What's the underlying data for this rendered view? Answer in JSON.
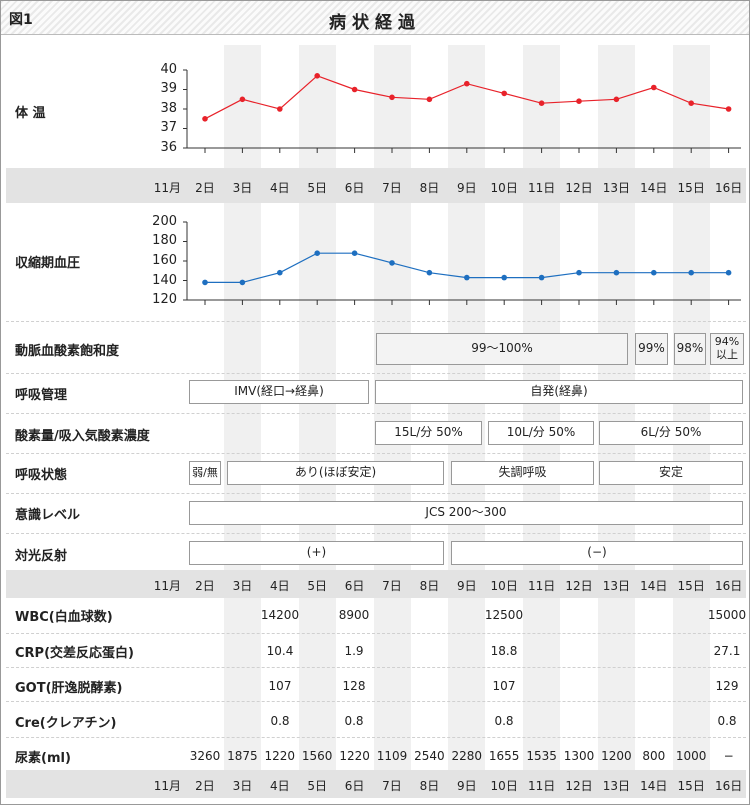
{
  "header": {
    "figure_number": "図1",
    "title": "病状経過"
  },
  "month_label": "11月",
  "days": [
    "2日",
    "3日",
    "4日",
    "5日",
    "6日",
    "7日",
    "8日",
    "9日",
    "10日",
    "11日",
    "12日",
    "13日",
    "14日",
    "15日",
    "16日"
  ],
  "row_labels": {
    "temperature": "体 温",
    "blood_pressure": "収縮期血圧",
    "spo2": "動脈血酸素飽和度",
    "respiratory_management": "呼吸管理",
    "oxygen": "酸素量/吸入気酸素濃度",
    "respiratory_state": "呼吸状態",
    "consciousness": "意識レベル",
    "light_reflex": "対光反射",
    "wbc": "WBC(白血球数)",
    "crp": "CRP(交差反応蛋白)",
    "got": "GOT(肝逸脱酵素)",
    "cre": "Cre(クレアチン)",
    "urine": "尿素(ml)"
  },
  "chart_data": [
    {
      "type": "line",
      "x": [
        "2日",
        "3日",
        "4日",
        "5日",
        "6日",
        "7日",
        "8日",
        "9日",
        "10日",
        "11日",
        "12日",
        "13日",
        "14日",
        "15日",
        "16日"
      ],
      "series": [
        {
          "values": [
            37.5,
            38.5,
            38.0,
            39.7,
            39.0,
            38.6,
            38.5,
            39.3,
            38.8,
            38.3,
            38.4,
            38.5,
            39.1,
            38.3,
            38.0
          ]
        }
      ],
      "ylim": [
        36,
        40
      ],
      "yticks": [
        "40",
        "39",
        "38",
        "37",
        "36"
      ],
      "color": "#e8222a"
    },
    {
      "type": "line",
      "x": [
        "2日",
        "3日",
        "4日",
        "5日",
        "6日",
        "7日",
        "8日",
        "9日",
        "10日",
        "11日",
        "12日",
        "13日",
        "14日",
        "15日",
        "16日"
      ],
      "series": [
        {
          "values": [
            138,
            138,
            148,
            168,
            168,
            158,
            148,
            143,
            143,
            143,
            148,
            148,
            148,
            148,
            148
          ]
        }
      ],
      "ylim": [
        120,
        200
      ],
      "yticks": [
        "200",
        "180",
        "160",
        "140",
        "120"
      ],
      "color": "#1e6fc0"
    }
  ],
  "spo2": {
    "range": "99〜100%",
    "d14": "99%",
    "d15": "98%",
    "d16_line1": "94%",
    "d16_line2": "以上"
  },
  "respiratory_management": {
    "imv": "IMV(経口→経鼻)",
    "spontaneous": "自発(経鼻)"
  },
  "oxygen": {
    "a": "15L/分 50%",
    "b": "10L/分 50%",
    "c": "6L/分 50%"
  },
  "respiratory_state": {
    "weak": "弱/無",
    "present": "あり(ほぼ安定)",
    "ataxic": "失調呼吸",
    "stable": "安定"
  },
  "consciousness": {
    "jcs": "JCS 200〜300"
  },
  "light_reflex": {
    "positive": "(+)",
    "negative": "(−)"
  },
  "labs": {
    "wbc": {
      "d4": "14200",
      "d6": "8900",
      "d10": "12500",
      "d16": "15000"
    },
    "crp": {
      "d4": "10.4",
      "d6": "1.9",
      "d10": "18.8",
      "d16": "27.1"
    },
    "got": {
      "d4": "107",
      "d6": "128",
      "d10": "107",
      "d16": "129"
    },
    "cre": {
      "d4": "0.8",
      "d6": "0.8",
      "d10": "0.8",
      "d16": "0.8"
    }
  },
  "urine": [
    "3260",
    "1875",
    "1220",
    "1560",
    "1220",
    "1109",
    "2540",
    "2280",
    "1655",
    "1535",
    "1300",
    "1200",
    "800",
    "1000",
    "−"
  ]
}
